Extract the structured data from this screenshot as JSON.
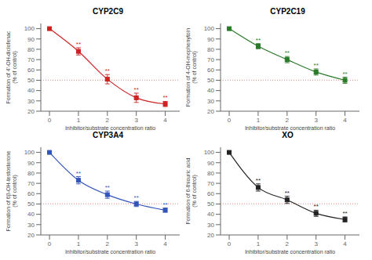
{
  "chart_data": [
    {
      "type": "line",
      "title": "CYP2C9",
      "xlabel": "Inhibitor/substrate concentration ratio",
      "ylabel": "Formation of 4'-OH-diclofenac\n(% of control)",
      "color": "#cc2222",
      "marker": "square",
      "line_style": "solid",
      "x": [
        0,
        1,
        2,
        3,
        4
      ],
      "values": [
        100,
        78,
        51,
        33,
        27
      ],
      "yerr": [
        1.0,
        3.5,
        4.5,
        4.5,
        2.5
      ],
      "annotations": [
        {
          "x": 1,
          "text": "**"
        },
        {
          "x": 2,
          "text": "**"
        },
        {
          "x": 3,
          "text": "**"
        },
        {
          "x": 4,
          "text": "**"
        }
      ],
      "reference_line": {
        "y": 50,
        "color": "#e8a0a0",
        "line_style": "dotted"
      },
      "xlim": [
        -0.3,
        4.5
      ],
      "xticks": [
        0,
        1,
        2,
        3,
        4
      ],
      "ylim": [
        20,
        105
      ],
      "yticks": [
        20,
        30,
        40,
        50,
        60,
        70,
        80,
        90,
        100
      ],
      "grid": false
    },
    {
      "type": "line",
      "title": "CYP2C19",
      "xlabel": "Inhibitor/substrate concentration ratio",
      "ylabel": "Formation of 4-OH-mephenytoin\n(% of control)",
      "color": "#2a7a2a",
      "marker": "square",
      "line_style": "solid",
      "x": [
        0,
        1,
        2,
        3,
        4
      ],
      "values": [
        100,
        83,
        70,
        58,
        50
      ],
      "yerr": [
        1.0,
        2.5,
        3.0,
        3.0,
        3.0
      ],
      "annotations": [
        {
          "x": 1,
          "text": "**"
        },
        {
          "x": 2,
          "text": "**"
        },
        {
          "x": 3,
          "text": "**"
        },
        {
          "x": 4,
          "text": "**"
        }
      ],
      "reference_line": {
        "y": 50,
        "color": "#e8a0a0",
        "line_style": "dotted"
      },
      "xlim": [
        -0.3,
        4.5
      ],
      "xticks": [
        0,
        1,
        2,
        3,
        4
      ],
      "ylim": [
        20,
        105
      ],
      "yticks": [
        20,
        30,
        40,
        50,
        60,
        70,
        80,
        90,
        100
      ],
      "grid": false
    },
    {
      "type": "line",
      "title": "CYP3A4",
      "xlabel": "Inhibitor/substrate concentration ratio",
      "ylabel": "Formation of 6β-OH-testosterone\n(% of control)",
      "color": "#3355bb",
      "marker": "square",
      "line_style": "solid",
      "x": [
        0,
        1,
        2,
        3,
        4
      ],
      "values": [
        100,
        73,
        59,
        50,
        44
      ],
      "yerr": [
        1.0,
        3.5,
        3.5,
        2.5,
        2.0
      ],
      "annotations": [
        {
          "x": 1,
          "text": "**"
        },
        {
          "x": 2,
          "text": "**"
        },
        {
          "x": 3,
          "text": "**"
        },
        {
          "x": 4,
          "text": "**"
        }
      ],
      "reference_line": {
        "y": 50,
        "color": "#e8a0a0",
        "line_style": "dotted"
      },
      "xlim": [
        -0.3,
        4.5
      ],
      "xticks": [
        0,
        1,
        2,
        3,
        4
      ],
      "ylim": [
        20,
        105
      ],
      "yticks": [
        20,
        30,
        40,
        50,
        60,
        70,
        80,
        90,
        100
      ],
      "grid": false
    },
    {
      "type": "line",
      "title": "XO",
      "xlabel": "Inhibitor/substrate concentration ratio",
      "ylabel": "Formation of 6-thiouric acid\n(% of control)",
      "color": "#222222",
      "marker": "square",
      "line_style": "solid",
      "x": [
        0,
        1,
        2,
        3,
        4
      ],
      "values": [
        100,
        66,
        54,
        41,
        35
      ],
      "yerr": [
        1.0,
        3.5,
        3.5,
        3.0,
        2.5
      ],
      "annotations": [
        {
          "x": 1,
          "text": "**"
        },
        {
          "x": 2,
          "text": "**"
        },
        {
          "x": 3,
          "text": "**"
        },
        {
          "x": 4,
          "text": "**"
        }
      ],
      "reference_line": {
        "y": 50,
        "color": "#e8a0a0",
        "line_style": "dotted"
      },
      "xlim": [
        -0.3,
        4.5
      ],
      "xticks": [
        0,
        1,
        2,
        3,
        4
      ],
      "ylim": [
        20,
        105
      ],
      "yticks": [
        20,
        30,
        40,
        50,
        60,
        70,
        80,
        90,
        100
      ],
      "grid": false
    }
  ]
}
